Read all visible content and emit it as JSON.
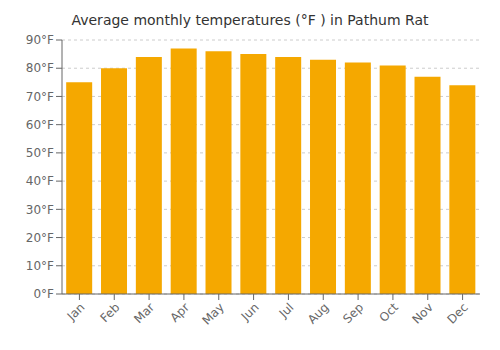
{
  "chart_data": {
    "type": "bar",
    "title": "Average monthly temperatures (°F ) in Pathum Rat",
    "categories": [
      "Jan",
      "Feb",
      "Mar",
      "Apr",
      "May",
      "Jun",
      "Jul",
      "Aug",
      "Sep",
      "Oct",
      "Nov",
      "Dec"
    ],
    "values": [
      75,
      80,
      84,
      87,
      86,
      85,
      84,
      83,
      82,
      81,
      77,
      74
    ],
    "color": "#F5A800",
    "ylim": [
      0,
      90
    ],
    "yticks": [
      {
        "value": 0,
        "label": "0°F"
      },
      {
        "value": 10,
        "label": "10°F"
      },
      {
        "value": 20,
        "label": "20°F"
      },
      {
        "value": 30,
        "label": "30°F"
      },
      {
        "value": 40,
        "label": "40°F"
      },
      {
        "value": 50,
        "label": "50°F"
      },
      {
        "value": 60,
        "label": "60°F"
      },
      {
        "value": 70,
        "label": "70°F"
      },
      {
        "value": 80,
        "label": "80°F"
      },
      {
        "value": 90,
        "label": "90°F"
      }
    ],
    "grid": true
  }
}
